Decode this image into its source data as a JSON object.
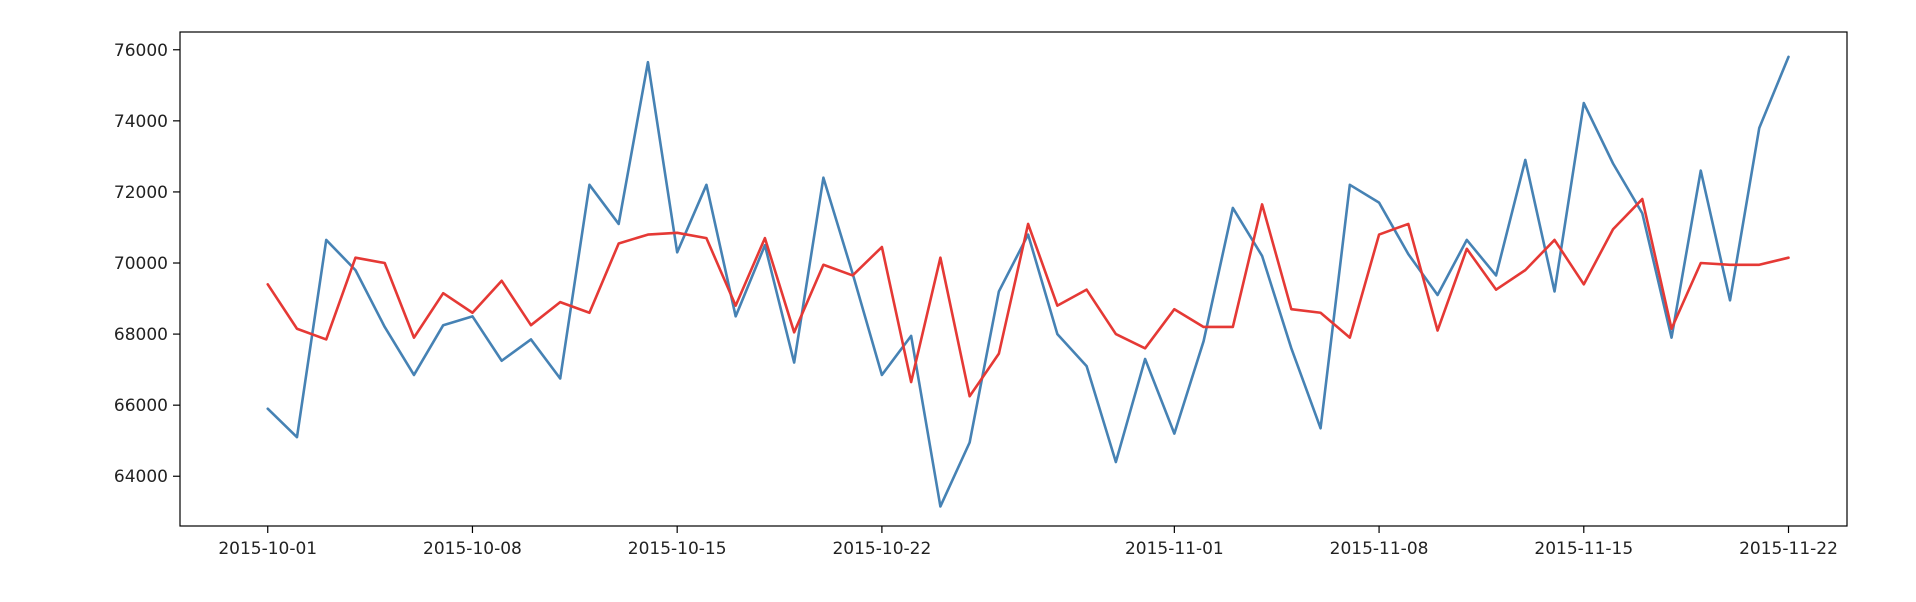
{
  "chart_data": {
    "type": "line",
    "title": "",
    "xlabel": "",
    "ylabel": "",
    "x_start": "2015-10-01",
    "x_end": "2015-11-22",
    "xlim": [
      "2015-09-28",
      "2015-11-24"
    ],
    "ylim": [
      62600,
      76500
    ],
    "yticks": [
      64000,
      66000,
      68000,
      70000,
      72000,
      74000,
      76000
    ],
    "ytick_labels": [
      "64000",
      "66000",
      "68000",
      "70000",
      "72000",
      "74000",
      "76000"
    ],
    "xticks": [
      "2015-10-01",
      "2015-10-08",
      "2015-10-15",
      "2015-10-22",
      "2015-11-01",
      "2015-11-08",
      "2015-11-15",
      "2015-11-22"
    ],
    "xtick_labels": [
      "2015-10-01",
      "2015-10-08",
      "2015-10-15",
      "2015-10-22",
      "2015-11-01",
      "2015-11-08",
      "2015-11-15",
      "2015-11-22"
    ],
    "grid": false,
    "legend": "none",
    "series": [
      {
        "color": "#4682b4",
        "values": [
          65900,
          65100,
          70650,
          69800,
          68200,
          66850,
          68250,
          68500,
          67250,
          67850,
          66750,
          72200,
          71100,
          75650,
          70300,
          72200,
          68500,
          70500,
          67200,
          72400,
          69700,
          66850,
          67950,
          63150,
          64950,
          69200,
          70800,
          68000,
          67100,
          64400,
          67300,
          65200,
          67800,
          71550,
          70200,
          67600,
          65350,
          72200,
          71700,
          70250,
          69100,
          70650,
          69650,
          72900,
          69200,
          74500,
          72800,
          71400,
          67900,
          72600,
          68950,
          73800,
          75800
        ]
      },
      {
        "color": "#e53935",
        "values": [
          69400,
          68150,
          67850,
          70150,
          70000,
          67900,
          69150,
          68600,
          69500,
          68250,
          68900,
          68600,
          70550,
          70800,
          70850,
          70700,
          68800,
          70700,
          68050,
          69950,
          69650,
          70450,
          66650,
          70150,
          66250,
          67450,
          71100,
          68800,
          69250,
          68000,
          67600,
          68700,
          68200,
          68200,
          71650,
          68700,
          68600,
          67900,
          70800,
          71100,
          68100,
          70400,
          69250,
          69800,
          70650,
          69400,
          70950,
          71800,
          68150,
          70000,
          69950,
          69950,
          70150
        ]
      }
    ]
  }
}
